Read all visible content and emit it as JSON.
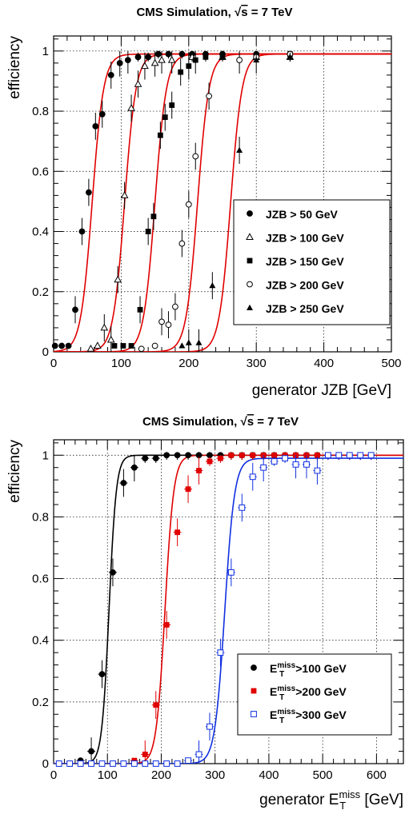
{
  "chart_data": [
    {
      "type": "scatter",
      "title": "CMS Simulation, √s = 7 TeV",
      "title_prefix": "CMS Simulation, ",
      "title_sqrt_arg": "s",
      "title_suffix": " = 7 TeV",
      "xlabel": "generator JZB [GeV]",
      "ylabel": "efficiency",
      "xlim": [
        0,
        500
      ],
      "ylim": [
        0,
        1.05
      ],
      "xticks": [
        0,
        100,
        200,
        300,
        400,
        500
      ],
      "yticks": [
        0,
        0.2,
        0.4,
        0.6,
        0.8,
        1
      ],
      "grid": true,
      "legend_position": "right",
      "series": [
        {
          "name": "JZB >  50 GeV",
          "marker": "filled-circle",
          "color": "#000000",
          "fit_color": "#e00000",
          "fit": {
            "midpoint": 57,
            "width": 12,
            "plateau": 0.99
          },
          "points": [
            [
              2,
              0.02
            ],
            [
              12,
              0.02
            ],
            [
              22,
              0.02
            ],
            [
              32,
              0.14
            ],
            [
              42,
              0.4
            ],
            [
              52,
              0.53
            ],
            [
              62,
              0.75
            ],
            [
              72,
              0.79
            ],
            [
              85,
              0.92
            ],
            [
              98,
              0.96
            ],
            [
              110,
              0.97
            ],
            [
              125,
              0.98
            ],
            [
              140,
              0.98
            ],
            [
              155,
              0.99
            ],
            [
              170,
              0.99
            ],
            [
              190,
              0.99
            ],
            [
              205,
              0.99
            ],
            [
              225,
              0.99
            ],
            [
              250,
              0.99
            ],
            [
              300,
              0.99
            ],
            [
              350,
              0.99
            ]
          ]
        },
        {
          "name": "JZB > 100 GeV",
          "marker": "open-triangle",
          "color": "#000000",
          "fit_color": "#e00000",
          "fit": {
            "midpoint": 105,
            "width": 12,
            "plateau": 0.99
          },
          "points": [
            [
              55,
              0.01
            ],
            [
              65,
              0.02
            ],
            [
              75,
              0.08
            ],
            [
              85,
              0.04
            ],
            [
              95,
              0.24
            ],
            [
              105,
              0.52
            ],
            [
              115,
              0.81
            ],
            [
              125,
              0.89
            ],
            [
              135,
              0.95
            ],
            [
              150,
              0.96
            ],
            [
              160,
              0.97
            ],
            [
              175,
              0.97
            ],
            [
              205,
              0.98
            ],
            [
              250,
              0.98
            ],
            [
              300,
              0.98
            ],
            [
              350,
              0.98
            ]
          ]
        },
        {
          "name": "JZB > 150 GeV",
          "marker": "filled-square",
          "color": "#000000",
          "fit_color": "#e00000",
          "fit": {
            "midpoint": 150,
            "width": 12,
            "plateau": 0.99
          },
          "points": [
            [
              90,
              0.02
            ],
            [
              103,
              0.02
            ],
            [
              115,
              0.02
            ],
            [
              128,
              0.14
            ],
            [
              140,
              0.4
            ],
            [
              148,
              0.45
            ],
            [
              158,
              0.72
            ],
            [
              165,
              0.78
            ],
            [
              175,
              0.82
            ],
            [
              188,
              0.93
            ],
            [
              200,
              0.95
            ],
            [
              210,
              0.97
            ],
            [
              225,
              0.98
            ],
            [
              250,
              0.98
            ],
            [
              300,
              0.98
            ],
            [
              350,
              0.99
            ]
          ]
        },
        {
          "name": "JZB > 200 GeV",
          "marker": "open-circle",
          "color": "#000000",
          "fit_color": "#e00000",
          "fit": {
            "midpoint": 213,
            "width": 12,
            "plateau": 0.99
          },
          "points": [
            [
              130,
              0.01
            ],
            [
              150,
              0.02
            ],
            [
              160,
              0.1
            ],
            [
              170,
              0.09
            ],
            [
              180,
              0.15
            ],
            [
              190,
              0.36
            ],
            [
              200,
              0.49
            ],
            [
              210,
              0.65
            ],
            [
              230,
              0.85
            ],
            [
              275,
              0.97
            ],
            [
              300,
              0.98
            ],
            [
              350,
              0.99
            ]
          ]
        },
        {
          "name": "JZB > 250 GeV",
          "marker": "filled-triangle",
          "color": "#000000",
          "fit_color": "#e00000",
          "fit": {
            "midpoint": 262,
            "width": 12,
            "plateau": 0.99
          },
          "points": [
            [
              190,
              0.02
            ],
            [
              200,
              0.03
            ],
            [
              215,
              0.03
            ],
            [
              235,
              0.22
            ],
            [
              275,
              0.67
            ],
            [
              300,
              0.97
            ],
            [
              350,
              0.98
            ]
          ]
        }
      ]
    },
    {
      "type": "scatter",
      "title": "CMS Simulation, √s = 7 TeV",
      "title_prefix": "CMS Simulation, ",
      "title_sqrt_arg": "s",
      "title_suffix": " = 7 TeV",
      "xlabel": "generator E_T^miss [GeV]",
      "xlabel_prefix": "generator E",
      "xlabel_sub": "T",
      "xlabel_sup": "miss",
      "xlabel_suffix": " [GeV]",
      "ylabel": "efficiency",
      "xlim": [
        0,
        650
      ],
      "ylim": [
        0,
        1.05
      ],
      "xticks": [
        0,
        100,
        200,
        300,
        400,
        500,
        600
      ],
      "yticks": [
        0,
        0.2,
        0.4,
        0.6,
        0.8,
        1
      ],
      "grid": true,
      "legend_position": "right",
      "series": [
        {
          "name": "E_T^miss>100 GeV",
          "label_prefix": "E",
          "label_sub": "T",
          "label_sup": "miss",
          "label_suffix": ">100 GeV",
          "marker": "filled-circle",
          "color": "#000000",
          "fit_color": "#000000",
          "fit": {
            "midpoint": 103,
            "width": 9.5,
            "plateau": 1.0
          },
          "points": [
            [
              10,
              0.0
            ],
            [
              30,
              0.0
            ],
            [
              50,
              0.01
            ],
            [
              70,
              0.04
            ],
            [
              90,
              0.29
            ],
            [
              110,
              0.62
            ],
            [
              130,
              0.91
            ],
            [
              150,
              0.96
            ],
            [
              170,
              0.99
            ],
            [
              190,
              0.99
            ],
            [
              210,
              1.0
            ],
            [
              230,
              1.0
            ],
            [
              250,
              1.0
            ],
            [
              270,
              1.0
            ],
            [
              290,
              1.0
            ],
            [
              310,
              1.0
            ],
            [
              330,
              1.0
            ],
            [
              350,
              1.0
            ],
            [
              370,
              1.0
            ],
            [
              390,
              1.0
            ],
            [
              410,
              1.0
            ],
            [
              430,
              1.0
            ],
            [
              450,
              1.0
            ],
            [
              470,
              1.0
            ],
            [
              490,
              1.0
            ],
            [
              510,
              1.0
            ],
            [
              530,
              1.0
            ],
            [
              550,
              1.0
            ],
            [
              570,
              1.0
            ],
            [
              590,
              1.0
            ]
          ]
        },
        {
          "name": "E_T^miss>200 GeV",
          "label_prefix": "E",
          "label_sub": "T",
          "label_sup": "miss",
          "label_suffix": ">200 GeV",
          "marker": "filled-square",
          "color": "#e00000",
          "fit_color": "#e00000",
          "fit": {
            "midpoint": 207,
            "width": 11.5,
            "plateau": 1.0
          },
          "points": [
            [
              10,
              0.0
            ],
            [
              30,
              0.0
            ],
            [
              50,
              0.0
            ],
            [
              70,
              0.0
            ],
            [
              90,
              0.0
            ],
            [
              110,
              0.0
            ],
            [
              130,
              0.0
            ],
            [
              150,
              0.01
            ],
            [
              170,
              0.03
            ],
            [
              190,
              0.19
            ],
            [
              210,
              0.45
            ],
            [
              230,
              0.75
            ],
            [
              250,
              0.89
            ],
            [
              270,
              0.95
            ],
            [
              290,
              0.98
            ],
            [
              310,
              0.99
            ],
            [
              330,
              1.0
            ],
            [
              350,
              1.0
            ],
            [
              370,
              1.0
            ],
            [
              390,
              1.0
            ],
            [
              410,
              1.0
            ],
            [
              430,
              1.0
            ],
            [
              450,
              1.0
            ],
            [
              470,
              1.0
            ],
            [
              490,
              1.0
            ],
            [
              510,
              1.0
            ],
            [
              530,
              1.0
            ],
            [
              550,
              1.0
            ],
            [
              570,
              1.0
            ],
            [
              590,
              1.0
            ]
          ]
        },
        {
          "name": "E_T^miss>300 GeV",
          "label_prefix": "E",
          "label_sub": "T",
          "label_sup": "miss",
          "label_suffix": ">300 GeV",
          "marker": "open-square",
          "color": "#1030e0",
          "fit_color": "#1030e0",
          "fit": {
            "midpoint": 318,
            "width": 13,
            "plateau": 0.99
          },
          "points": [
            [
              10,
              0.0
            ],
            [
              30,
              0.0
            ],
            [
              50,
              0.0
            ],
            [
              70,
              0.0
            ],
            [
              90,
              0.0
            ],
            [
              110,
              0.0
            ],
            [
              130,
              0.0
            ],
            [
              150,
              0.0
            ],
            [
              170,
              0.0
            ],
            [
              190,
              0.0
            ],
            [
              210,
              0.0
            ],
            [
              230,
              0.0
            ],
            [
              250,
              0.01
            ],
            [
              270,
              0.03
            ],
            [
              290,
              0.12
            ],
            [
              310,
              0.36
            ],
            [
              330,
              0.62
            ],
            [
              350,
              0.83
            ],
            [
              370,
              0.93
            ],
            [
              390,
              0.96
            ],
            [
              410,
              0.98
            ],
            [
              430,
              0.99
            ],
            [
              450,
              0.97
            ],
            [
              470,
              0.97
            ],
            [
              490,
              0.95
            ],
            [
              510,
              1.0
            ],
            [
              530,
              1.0
            ],
            [
              550,
              1.0
            ],
            [
              570,
              1.0
            ],
            [
              590,
              1.0
            ]
          ]
        }
      ]
    }
  ]
}
